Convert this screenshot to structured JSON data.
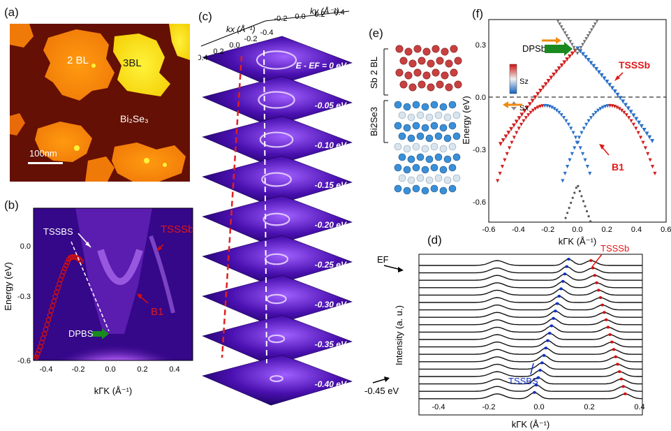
{
  "panels": {
    "a": {
      "letter": "(a)",
      "labels": {
        "bl2": "2 BL",
        "bl3": "3BL",
        "substrate": "Bi₂Se₃"
      },
      "scalebar": "100nm"
    },
    "b": {
      "letter": "(b)",
      "ylabel": "Energy (eV)",
      "xlabel": "kΓK (Å⁻¹)",
      "xticks": [
        "-0.4",
        "-0.2",
        "0.0",
        "0.2",
        "0.4"
      ],
      "yticks": [
        "0.0",
        "-0.3",
        "-0.6"
      ],
      "labels": {
        "tss_bs": "TSSBS",
        "tss_sb": "TSSSb",
        "b1": "B1",
        "dp_bs": "DPBS"
      }
    },
    "c": {
      "letter": "(c)",
      "kx_label": "kx (Å⁻¹)",
      "ky_label": "ky (Å⁻¹)",
      "kx_ticks": [
        "0.4",
        "0.2",
        "0.0",
        "-0.2",
        "-0.4"
      ],
      "ky_ticks": [
        "-0.2",
        "0.0",
        "0.2",
        "0.4"
      ],
      "energy_first": "E - EF = 0 eV",
      "energies": [
        "-0.05 eV",
        "-0.10 eV",
        "-0.15 eV",
        "-0.20 eV",
        "-0.25 eV",
        "-0.30 eV",
        "-0.35 eV",
        "-0.40 eV"
      ]
    },
    "d": {
      "letter": "(d)",
      "ylabel": "Intensity (a. u.)",
      "xlabel": "kΓK (Å⁻¹)",
      "xticks": [
        "-0.4",
        "-0.2",
        "0.0",
        "0.2",
        "0.4"
      ],
      "ef_label": "EF",
      "bottom_label": "-0.45 eV",
      "labels": {
        "tss_sb": "TSSSb",
        "tss_bs": "TSSBS"
      }
    },
    "e": {
      "letter": "(e)",
      "top_label": "Sb 2 BL",
      "bottom_label": "Bi2Se3"
    },
    "f": {
      "letter": "(f)",
      "ylabel": "Energy (eV)",
      "xlabel": "kΓK (Å⁻¹)",
      "xticks": [
        "-0.6",
        "-0.4",
        "-0.2",
        "0.0",
        "0.2",
        "0.4",
        "0.6"
      ],
      "yticks": [
        "0.3",
        "0.0",
        "-0.3",
        "-0.6"
      ],
      "labels": {
        "dp_sb": "DPSb",
        "tss_sb": "TSSSb",
        "b1": "B1",
        "sz": "Sz",
        "sx": "Sx"
      }
    }
  },
  "colors": {
    "red_marker": "#d01010",
    "blue_marker": "#1030c0",
    "green_arrow": "#1a8a20",
    "orange_arrow": "#f08a10"
  }
}
